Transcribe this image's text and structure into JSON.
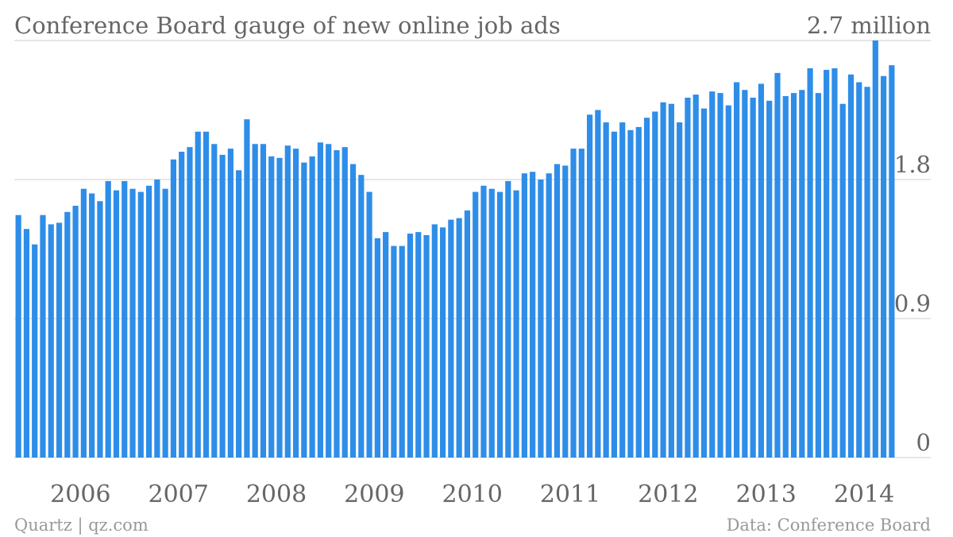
{
  "chart_data": {
    "type": "bar",
    "title": "Conference Board gauge of new online job ads",
    "credit": "Quartz | qz.com",
    "source": "Data: Conference Board",
    "color": "#2e8de8",
    "grid": true,
    "ylim": [
      0,
      2.7
    ],
    "yticks": [
      0,
      0.9,
      1.8,
      {
        "value": 2.7,
        "label": "2.7 million"
      }
    ],
    "categories": [
      null,
      null,
      null,
      null,
      null,
      null,
      null,
      null,
      "2006",
      null,
      null,
      null,
      null,
      null,
      null,
      null,
      null,
      null,
      null,
      null,
      "2007",
      null,
      null,
      null,
      null,
      null,
      null,
      null,
      null,
      null,
      null,
      null,
      "2008",
      null,
      null,
      null,
      null,
      null,
      null,
      null,
      null,
      null,
      null,
      null,
      "2009",
      null,
      null,
      null,
      null,
      null,
      null,
      null,
      null,
      null,
      null,
      null,
      "2010",
      null,
      null,
      null,
      null,
      null,
      null,
      null,
      null,
      null,
      null,
      null,
      "2011",
      null,
      null,
      null,
      null,
      null,
      null,
      null,
      null,
      null,
      null,
      null,
      "2012",
      null,
      null,
      null,
      null,
      null,
      null,
      null,
      null,
      null,
      null,
      null,
      "2013",
      null,
      null,
      null,
      null,
      null,
      null,
      null,
      null,
      null,
      null,
      null,
      "2014",
      null,
      null,
      null
    ],
    "values": [
      1.57,
      1.48,
      1.38,
      1.57,
      1.51,
      1.52,
      1.59,
      1.63,
      1.74,
      1.71,
      1.66,
      1.79,
      1.73,
      1.79,
      1.74,
      1.72,
      1.76,
      1.8,
      1.74,
      1.93,
      1.98,
      2.01,
      2.11,
      2.11,
      2.03,
      1.96,
      2.0,
      1.86,
      2.19,
      2.03,
      2.03,
      1.95,
      1.94,
      2.02,
      2.0,
      1.91,
      1.95,
      2.04,
      2.03,
      1.99,
      2.01,
      1.9,
      1.83,
      1.72,
      1.42,
      1.46,
      1.37,
      1.37,
      1.45,
      1.46,
      1.44,
      1.51,
      1.49,
      1.54,
      1.55,
      1.6,
      1.72,
      1.76,
      1.74,
      1.72,
      1.79,
      1.73,
      1.84,
      1.85,
      1.8,
      1.84,
      1.9,
      1.89,
      2.0,
      2.0,
      2.22,
      2.25,
      2.17,
      2.11,
      2.17,
      2.12,
      2.14,
      2.2,
      2.24,
      2.3,
      2.29,
      2.17,
      2.33,
      2.35,
      2.26,
      2.37,
      2.36,
      2.28,
      2.43,
      2.38,
      2.33,
      2.42,
      2.31,
      2.49,
      2.34,
      2.36,
      2.38,
      2.52,
      2.36,
      2.51,
      2.52,
      2.29,
      2.48,
      2.43,
      2.4,
      2.7,
      2.47,
      2.54
    ]
  }
}
